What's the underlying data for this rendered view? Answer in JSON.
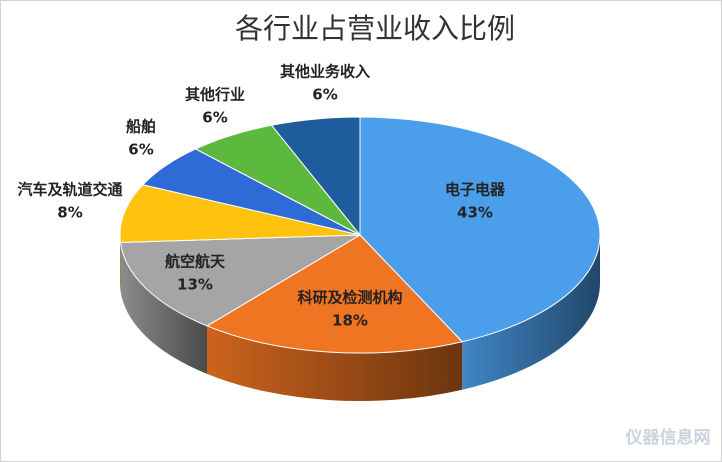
{
  "chart_data": {
    "type": "pie3d",
    "title": "各行业占营业收入比例",
    "categories": [
      "电子电器",
      "科研及检测机构",
      "航空航天",
      "汽车及轨道交通",
      "船舶",
      "其他行业",
      "其他业务收入"
    ],
    "values": [
      43,
      18,
      13,
      8,
      6,
      6,
      6
    ],
    "value_labels": [
      "43%",
      "18%",
      "13%",
      "8%",
      "6%",
      "6%",
      "6%"
    ],
    "colors": [
      "#4b9eea",
      "#f07522",
      "#a5a5a5",
      "#ffc20e",
      "#2f6bd6",
      "#5db83e",
      "#1f5c9e"
    ],
    "watermark": "仪器信息网"
  }
}
